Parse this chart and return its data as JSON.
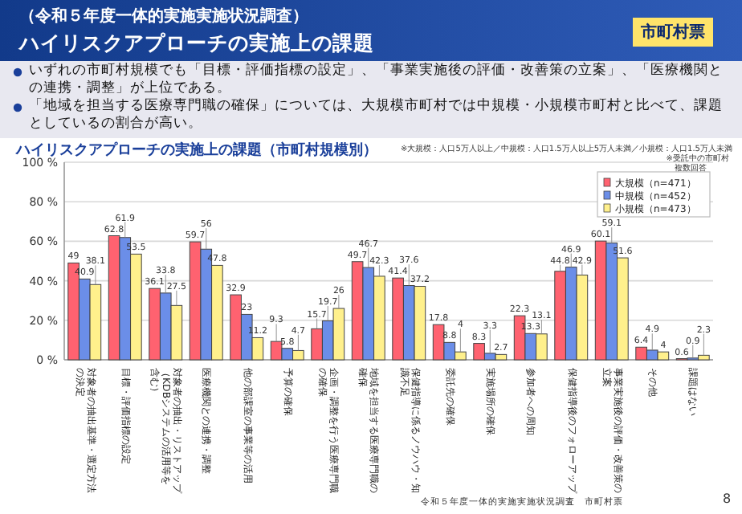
{
  "chart_data": {
    "type": "bar",
    "title": "ハイリスクアプローチの実施上の課題",
    "subtitle": "（令和５年度一体的実施実施状況調査）",
    "categories": [
      "対象者の抽出基準・選定方法の決定",
      "目標・評価指標の設定",
      "対象者の抽出・リストアップ（KDBシステムの活用等を含む）",
      "医療機関との連携・調整",
      "他の部課室の事業等の活用",
      "予算の確保",
      "企画・調整を行う医療専門職の確保",
      "地域を担当する医療専門職の確保",
      "保健指導に係るノウハウ・知識不足",
      "委託先の確保",
      "実施場所の確保",
      "参加者への周知",
      "保健指導後のフォローアップ",
      "事業実施後の評価・改善策の立案",
      "その他",
      "課題はない"
    ],
    "series": [
      {
        "name": "大規模（n=471）",
        "color": "#ff6270",
        "values": [
          49,
          62.8,
          36.1,
          59.7,
          32.9,
          9.3,
          15.7,
          49.7,
          41.4,
          17.8,
          8.3,
          22.3,
          44.8,
          60.1,
          6.4,
          0.6
        ]
      },
      {
        "name": "中規模（n=452）",
        "color": "#6b8ee8",
        "values": [
          40.9,
          61.9,
          33.8,
          56,
          23,
          5.8,
          19.7,
          46.7,
          37.6,
          8.8,
          3.3,
          13.3,
          46.9,
          59.1,
          4.9,
          0.9
        ]
      },
      {
        "name": "小規模（n=473）",
        "color": "#fff08c",
        "values": [
          38.1,
          53.5,
          27.5,
          47.8,
          11.2,
          4.7,
          26,
          42.3,
          37.2,
          4,
          2.7,
          13.1,
          42.9,
          51.6,
          4,
          2.3
        ]
      }
    ],
    "ylim": [
      0,
      100
    ],
    "yticks": [
      {
        "value": 0,
        "label": "0 %"
      },
      {
        "value": 20,
        "label": "20 %"
      },
      {
        "value": 40,
        "label": "40 %"
      },
      {
        "value": 60,
        "label": "60 %"
      },
      {
        "value": 80,
        "label": "80 %"
      },
      {
        "value": 100,
        "label": "100 %"
      }
    ],
    "grid": "y",
    "legend": "top right",
    "data_labels": true,
    "annotations": [
      "市町村票",
      "いずれの市町村規模でも「目標・評価指標の設定」、「事業実施後の評価・改善策の立案」、「医療機関との連携・調整」が上位である。",
      "「地域を担当する医療専門職の確保」については、大規模市町村では中規模・小規模市町村と比べて、課題としているの割合が高い。",
      "ハイリスクアプローチの実施上の課題（市町村規模別）",
      "※大規模：人口5万人以上／中規模：人口1.5万人以上5万人未満／小規模：人口1.5万人未満",
      "※受託中の市町村",
      "複数回答",
      "令和５年度一体的実施実施状況調査　市町村票",
      "8"
    ]
  }
}
